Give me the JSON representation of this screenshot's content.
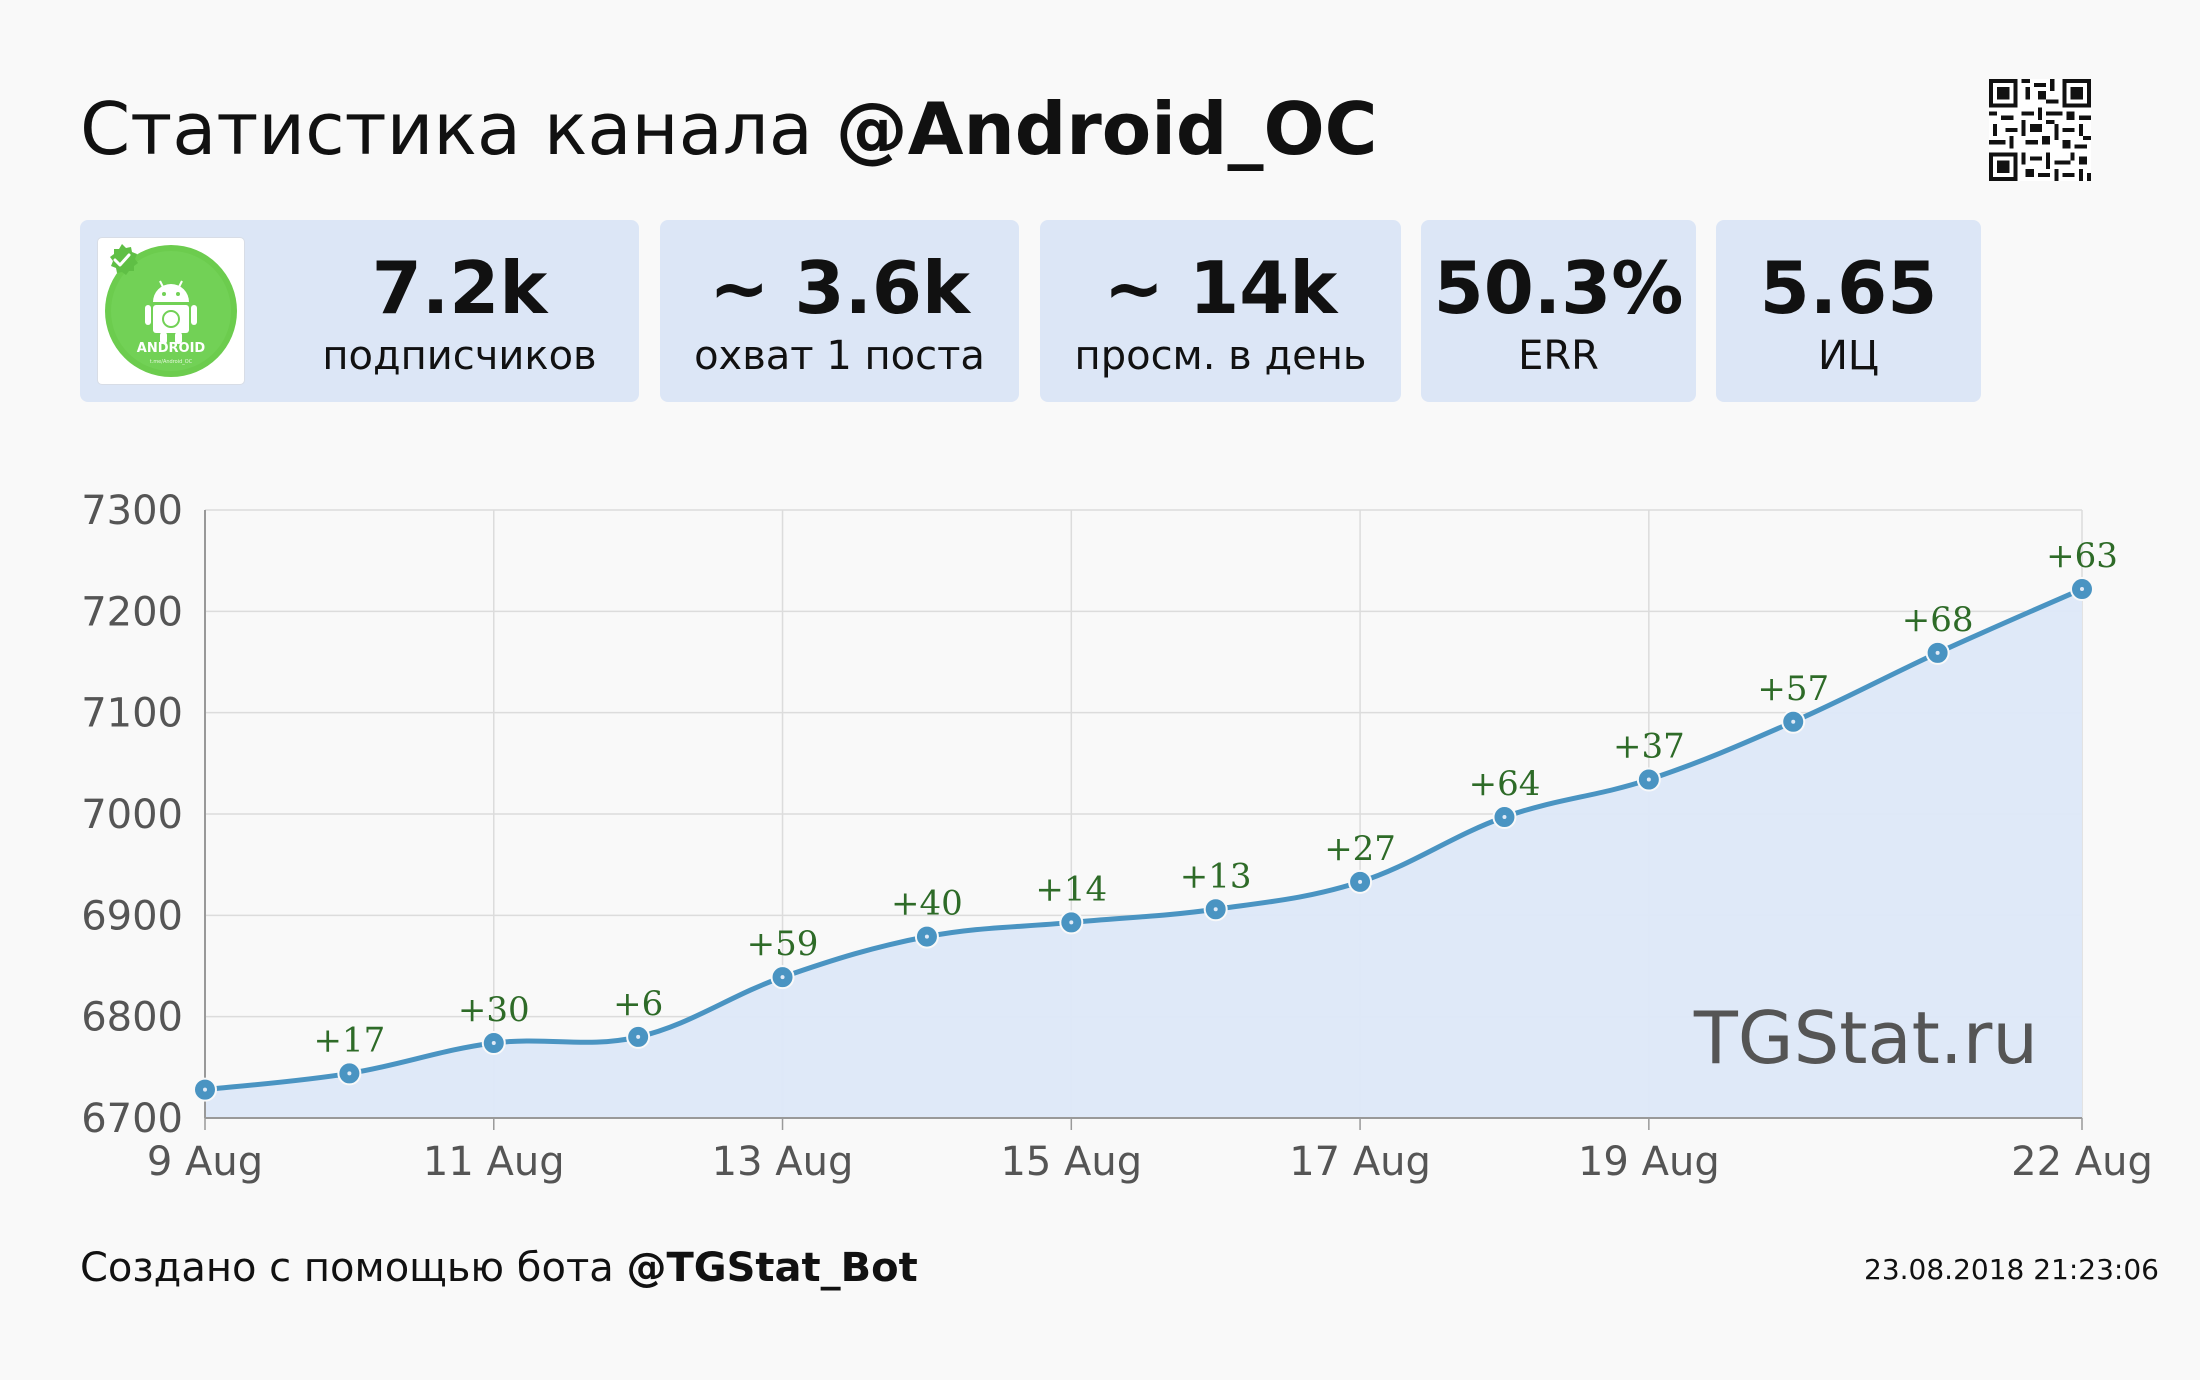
{
  "header": {
    "title_prefix": "Статистика канала",
    "channel": "@Android_OC"
  },
  "stats": {
    "subscribers": {
      "value": "7.2k",
      "label": "подписчиков"
    },
    "reach": {
      "value": "~ 3.6k",
      "label": "охват 1 поста"
    },
    "daily_views": {
      "value": "~ 14k",
      "label": "просм. в день"
    },
    "err": {
      "value": "50.3%",
      "label": "ERR"
    },
    "ic": {
      "value": "5.65",
      "label": "ИЦ"
    }
  },
  "avatar": {
    "logo_text": "ANDROID",
    "caption": "t.me/Android_OC"
  },
  "chart_data": {
    "type": "line",
    "title": "",
    "xlabel": "",
    "ylabel": "",
    "ylim": [
      6700,
      7300
    ],
    "yticks": [
      6700,
      6800,
      6900,
      7000,
      7100,
      7200,
      7300
    ],
    "xtick_labels": [
      {
        "day": 0,
        "label": "9 Aug"
      },
      {
        "day": 2,
        "label": "11 Aug"
      },
      {
        "day": 4,
        "label": "13 Aug"
      },
      {
        "day": 6,
        "label": "15 Aug"
      },
      {
        "day": 8,
        "label": "17 Aug"
      },
      {
        "day": 10,
        "label": "19 Aug"
      },
      {
        "day": 13,
        "label": "22 Aug"
      }
    ],
    "x": [
      "9 Aug",
      "10 Aug",
      "11 Aug",
      "12 Aug",
      "13 Aug",
      "14 Aug",
      "15 Aug",
      "16 Aug",
      "17 Aug",
      "18 Aug",
      "19 Aug",
      "20 Aug",
      "21 Aug",
      "22 Aug"
    ],
    "series": [
      {
        "values": [
          6728,
          6744,
          6774,
          6780,
          6839,
          6879,
          6893,
          6906,
          6933,
          6997,
          7034,
          7091,
          7159,
          7222
        ]
      }
    ],
    "data_labels": [
      "",
      "+17",
      "+30",
      "+6",
      "+59",
      "+40",
      "+14",
      "+13",
      "+27",
      "+64",
      "+37",
      "+57",
      "+68",
      "+63"
    ],
    "grid": true,
    "line_color": "#4a94c2",
    "fill_color": "#dde8f8",
    "label_color": "#2e6b28",
    "watermark": "TGStat.ru"
  },
  "footer": {
    "prefix": "Создано с помощью бота",
    "bot": "@TGStat_Bot",
    "timestamp": "23.08.2018 21:23:06"
  }
}
